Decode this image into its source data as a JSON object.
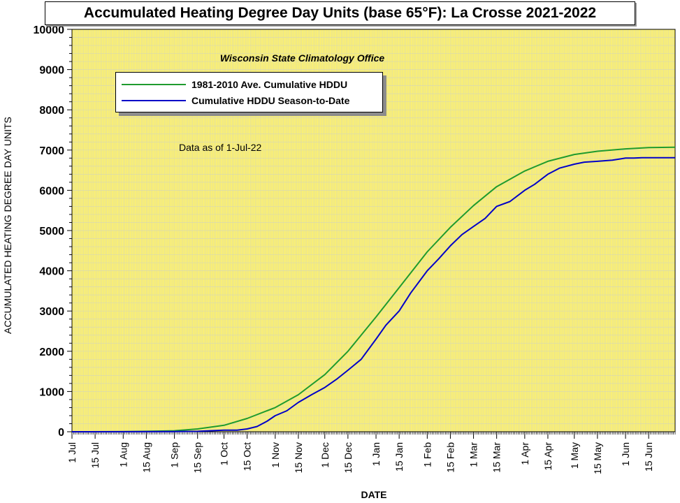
{
  "chart_data": {
    "type": "line",
    "title": "Accumulated Heating Degree Day Units (base 65°F): La Crosse 2021-2022",
    "subtitle": "Wisconsin State Climatology Office",
    "note": "Data as of 1-Jul-22",
    "xlabel": "DATE",
    "ylabel": "ACCUMULATED HEATING DEGREE DAY UNITS",
    "ylim": [
      0,
      10000
    ],
    "yticks": [
      "0",
      "1000",
      "2000",
      "3000",
      "4000",
      "5000",
      "6000",
      "7000",
      "8000",
      "9000",
      "10000"
    ],
    "xticks": [
      {
        "day": 0,
        "label": "1 Jul"
      },
      {
        "day": 14,
        "label": "15 Jul"
      },
      {
        "day": 31,
        "label": "1 Aug"
      },
      {
        "day": 45,
        "label": "15 Aug"
      },
      {
        "day": 62,
        "label": "1 Sep"
      },
      {
        "day": 76,
        "label": "15 Sep"
      },
      {
        "day": 92,
        "label": "1 Oct"
      },
      {
        "day": 106,
        "label": "15 Oct"
      },
      {
        "day": 123,
        "label": "1 Nov"
      },
      {
        "day": 137,
        "label": "15 Nov"
      },
      {
        "day": 153,
        "label": "1 Dec"
      },
      {
        "day": 167,
        "label": "15 Dec"
      },
      {
        "day": 184,
        "label": "1 Jan"
      },
      {
        "day": 198,
        "label": "15 Jan"
      },
      {
        "day": 215,
        "label": "1 Feb"
      },
      {
        "day": 229,
        "label": "15 Feb"
      },
      {
        "day": 243,
        "label": "1 Mar"
      },
      {
        "day": 257,
        "label": "15 Mar"
      },
      {
        "day": 274,
        "label": "1 Apr"
      },
      {
        "day": 288,
        "label": "15 Apr"
      },
      {
        "day": 304,
        "label": "1 May"
      },
      {
        "day": 318,
        "label": "15 May"
      },
      {
        "day": 335,
        "label": "1 Jun"
      },
      {
        "day": 349,
        "label": "15 Jun"
      }
    ],
    "xlim_days": [
      0,
      365
    ],
    "grid": true,
    "background_color": "#FFF36B",
    "grid_color": "#D9D9B0",
    "legend_position": "top-left",
    "series": [
      {
        "name": "1981-2010 Ave. Cumulative HDDU",
        "color": "#1F9B2E",
        "days": [
          0,
          31,
          46,
          62,
          76,
          92,
          106,
          123,
          137,
          153,
          167,
          184,
          198,
          215,
          229,
          243,
          257,
          274,
          288,
          304,
          318,
          335,
          349,
          365
        ],
        "values": [
          0,
          2,
          10,
          25,
          70,
          160,
          330,
          600,
          920,
          1420,
          2000,
          2850,
          3580,
          4470,
          5080,
          5620,
          6090,
          6480,
          6720,
          6890,
          6970,
          7030,
          7060,
          7070
        ]
      },
      {
        "name": "Cumulative HDDU Season-to-Date",
        "color": "#0000C8",
        "days": [
          0,
          62,
          76,
          92,
          100,
          106,
          112,
          118,
          123,
          130,
          137,
          145,
          153,
          160,
          167,
          175,
          184,
          190,
          198,
          205,
          215,
          222,
          229,
          236,
          243,
          250,
          257,
          265,
          274,
          280,
          288,
          295,
          304,
          310,
          318,
          327,
          335,
          340,
          345,
          365
        ],
        "values": [
          0,
          5,
          10,
          40,
          40,
          70,
          130,
          260,
          400,
          520,
          730,
          920,
          1100,
          1300,
          1530,
          1800,
          2300,
          2650,
          3000,
          3450,
          4000,
          4300,
          4620,
          4900,
          5100,
          5300,
          5600,
          5720,
          6000,
          6150,
          6400,
          6550,
          6650,
          6700,
          6720,
          6750,
          6800,
          6800,
          6810,
          6810
        ]
      }
    ]
  }
}
